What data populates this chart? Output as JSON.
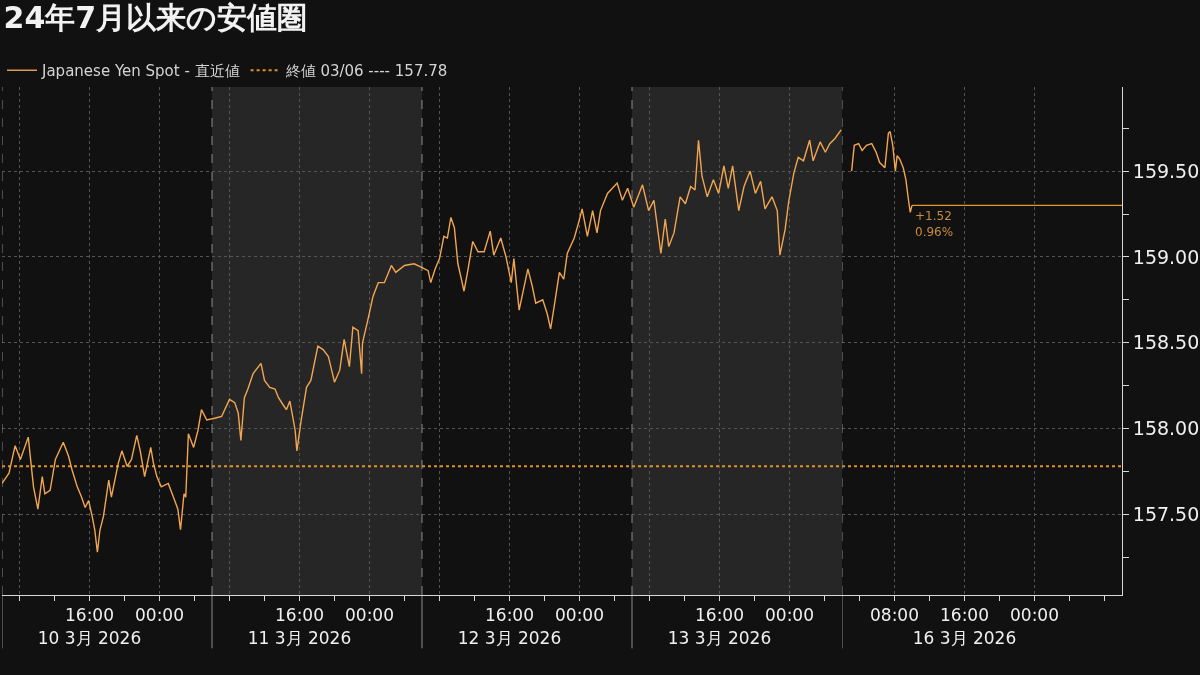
{
  "chart_data": [
    {
      "type": "line",
      "title": "24年7月以来の安値圏",
      "series": [
        {
          "name": "Japanese Yen Spot - 直近値",
          "color": "#f2a650",
          "x": [
            "2026-03-10T06:00",
            "2026-03-10T06:48",
            "2026-03-10T07:30",
            "2026-03-10T08:06",
            "2026-03-10T09:00",
            "2026-03-10T09:36",
            "2026-03-10T10:06",
            "2026-03-10T10:36",
            "2026-03-10T10:54",
            "2026-03-10T11:30",
            "2026-03-10T12:06",
            "2026-03-10T13:00",
            "2026-03-10T13:36",
            "2026-03-10T14:00",
            "2026-03-10T14:36",
            "2026-03-10T15:06",
            "2026-03-10T15:30",
            "2026-03-10T15:54",
            "2026-03-10T16:18",
            "2026-03-10T16:36",
            "2026-03-10T16:54",
            "2026-03-10T17:12",
            "2026-03-10T17:36",
            "2026-03-10T18:12",
            "2026-03-10T18:30",
            "2026-03-10T19:18",
            "2026-03-10T19:42",
            "2026-03-10T20:18",
            "2026-03-10T20:48",
            "2026-03-10T21:24",
            "2026-03-10T21:48",
            "2026-03-10T22:18",
            "2026-03-10T23:00",
            "2026-03-10T23:18",
            "2026-03-10T23:42",
            "2026-03-11T00:12",
            "2026-03-11T01:00",
            "2026-03-11T01:36",
            "2026-03-11T02:06",
            "2026-03-11T02:24",
            "2026-03-11T02:48",
            "2026-03-11T03:00",
            "2026-03-11T03:18",
            "2026-03-11T03:54",
            "2026-03-11T04:24",
            "2026-03-11T04:48",
            "2026-03-11T05:24",
            "2026-03-11T06:18",
            "2026-03-11T07:06",
            "2026-03-11T08:00",
            "2026-03-11T08:36",
            "2026-03-11T09:00",
            "2026-03-11T09:18",
            "2026-03-11T09:42",
            "2026-03-11T10:06",
            "2026-03-11T10:42",
            "2026-03-11T11:36",
            "2026-03-11T12:00",
            "2026-03-11T12:36",
            "2026-03-11T13:12",
            "2026-03-11T13:36",
            "2026-03-11T14:06",
            "2026-03-11T14:30",
            "2026-03-11T14:54",
            "2026-03-11T15:30",
            "2026-03-11T15:42",
            "2026-03-11T16:12",
            "2026-03-11T16:48",
            "2026-03-11T17:18",
            "2026-03-11T18:06",
            "2026-03-11T18:42",
            "2026-03-11T19:18",
            "2026-03-11T20:00",
            "2026-03-11T20:36",
            "2026-03-11T21:06",
            "2026-03-11T21:42",
            "2026-03-11T22:06",
            "2026-03-11T22:42",
            "2026-03-11T23:06",
            "2026-03-11T23:12",
            "2026-03-11T23:48",
            "2026-03-12T00:24",
            "2026-03-12T01:00",
            "2026-03-12T01:42",
            "2026-03-12T02:30",
            "2026-03-12T03:00",
            "2026-03-12T04:00",
            "2026-03-12T05:06",
            "2026-03-12T05:54",
            "2026-03-12T06:42",
            "2026-03-12T07:00",
            "2026-03-12T07:30",
            "2026-03-12T08:00",
            "2026-03-12T08:30",
            "2026-03-12T08:54",
            "2026-03-12T09:18",
            "2026-03-12T09:42",
            "2026-03-12T10:06",
            "2026-03-12T10:30",
            "2026-03-12T10:48",
            "2026-03-12T11:12",
            "2026-03-12T11:48",
            "2026-03-12T12:24",
            "2026-03-12T13:06",
            "2026-03-12T13:48",
            "2026-03-12T14:12",
            "2026-03-12T15:00",
            "2026-03-12T15:36",
            "2026-03-12T16:12",
            "2026-03-12T16:30",
            "2026-03-12T17:06",
            "2026-03-12T18:06",
            "2026-03-12T18:36",
            "2026-03-12T19:00",
            "2026-03-12T19:48",
            "2026-03-12T20:18",
            "2026-03-12T20:42",
            "2026-03-12T21:06",
            "2026-03-12T21:42",
            "2026-03-12T22:12",
            "2026-03-12T22:36",
            "2026-03-12T23:24",
            "2026-03-12T23:54",
            "2026-03-13T00:18",
            "2026-03-13T00:54",
            "2026-03-13T01:30",
            "2026-03-13T02:00",
            "2026-03-13T02:24",
            "2026-03-13T03:12",
            "2026-03-13T04:18",
            "2026-03-13T04:54",
            "2026-03-13T05:30",
            "2026-03-13T06:12",
            "2026-03-13T07:12",
            "2026-03-13T07:54",
            "2026-03-13T08:30",
            "2026-03-13T09:18",
            "2026-03-13T09:48",
            "2026-03-13T10:12",
            "2026-03-13T10:48",
            "2026-03-13T11:30",
            "2026-03-13T12:06",
            "2026-03-13T12:42",
            "2026-03-13T13:12",
            "2026-03-13T13:36",
            "2026-03-13T14:00",
            "2026-03-13T14:36",
            "2026-03-13T15:18",
            "2026-03-13T15:54",
            "2026-03-13T16:30",
            "2026-03-13T17:00",
            "2026-03-13T17:30",
            "2026-03-13T18:12",
            "2026-03-13T18:48",
            "2026-03-13T19:30",
            "2026-03-13T20:06",
            "2026-03-13T20:42",
            "2026-03-13T21:12",
            "2026-03-13T22:00",
            "2026-03-13T22:36",
            "2026-03-13T22:54",
            "2026-03-13T23:30",
            "2026-03-13T23:54",
            "2026-03-14T00:30",
            "2026-03-14T01:00",
            "2026-03-14T01:36",
            "2026-03-14T02:18",
            "2026-03-14T02:42",
            "2026-03-14T03:30",
            "2026-03-14T04:06",
            "2026-03-14T04:36",
            "2026-03-14T05:12",
            "2026-03-14T05:54"
          ],
          "values": [
            157.68,
            157.74,
            157.9,
            157.82,
            157.95,
            157.66,
            157.53,
            157.72,
            157.62,
            157.64,
            157.82,
            157.92,
            157.84,
            157.76,
            157.66,
            157.6,
            157.54,
            157.58,
            157.49,
            157.41,
            157.28,
            157.41,
            157.49,
            157.7,
            157.6,
            157.8,
            157.87,
            157.78,
            157.82,
            157.96,
            157.87,
            157.72,
            157.89,
            157.8,
            157.72,
            157.66,
            157.68,
            157.6,
            157.53,
            157.41,
            157.62,
            157.6,
            157.97,
            157.89,
            157.99,
            158.11,
            158.05,
            158.06,
            158.07,
            158.17,
            158.15,
            158.09,
            157.93,
            158.18,
            158.23,
            158.32,
            158.38,
            158.28,
            158.24,
            158.23,
            158.18,
            158.14,
            158.11,
            158.16,
            157.99,
            157.87,
            158.05,
            158.24,
            158.28,
            158.48,
            158.46,
            158.42,
            158.27,
            158.34,
            158.52,
            158.36,
            158.59,
            158.57,
            158.32,
            158.5,
            158.63,
            158.77,
            158.85,
            158.85,
            158.95,
            158.91,
            158.95,
            158.96,
            158.94,
            158.92,
            158.85,
            158.93,
            158.99,
            159.12,
            159.11,
            159.23,
            159.17,
            158.96,
            158.87,
            158.8,
            158.91,
            159.09,
            159.03,
            159.03,
            159.15,
            159.01,
            159.11,
            159.0,
            158.85,
            158.99,
            158.69,
            158.93,
            158.83,
            158.73,
            158.75,
            158.67,
            158.58,
            158.71,
            158.91,
            158.87,
            159.02,
            159.11,
            159.2,
            159.28,
            159.12,
            159.27,
            159.14,
            159.27,
            159.37,
            159.43,
            159.33,
            159.4,
            159.29,
            159.42,
            159.27,
            159.33,
            159.02,
            159.22,
            159.06,
            159.14,
            159.35,
            159.31,
            159.41,
            159.39,
            159.68,
            159.47,
            159.35,
            159.45,
            159.37,
            159.53,
            159.4,
            159.53,
            159.27,
            159.41,
            159.5,
            159.37,
            159.44,
            159.28,
            159.35,
            159.27,
            159.01,
            159.16,
            159.32,
            159.49,
            159.58,
            159.56,
            159.68,
            159.56,
            159.67,
            159.61,
            159.66,
            159.69,
            159.74
          ]
        }
      ],
      "xlim": [
        "2026-03-10T06:00",
        "2026-03-14T06:00"
      ],
      "xticks": [
        {
          "value": "2026-03-10T08:00",
          "label": null
        },
        {
          "value": "2026-03-10T16:00",
          "label": "16:00\n10 3月 2026"
        },
        {
          "value": "2026-03-11T00:00",
          "label": "00:00"
        },
        {
          "value": "2026-03-11T08:00",
          "label": null
        },
        {
          "value": "2026-03-11T16:00",
          "label": "16:00\n11 3月 2026"
        },
        {
          "value": "2026-03-12T00:00",
          "label": "00:00"
        },
        {
          "value": "2026-03-12T08:00",
          "label": null
        },
        {
          "value": "2026-03-12T16:00",
          "label": "16:00\n12 3月 2026"
        },
        {
          "value": "2026-03-13T00:00",
          "label": "00:00"
        },
        {
          "value": "2026-03-13T08:00",
          "label": null
        },
        {
          "value": "2026-03-13T16:00",
          "label": "16:00\n13 3月 2026"
        },
        {
          "value": "2026-03-14T00:00",
          "label": "00:00"
        }
      ],
      "ylim": [
        157.03,
        159.99
      ],
      "yticks": [
        157.5,
        158,
        158.5,
        159,
        159.5
      ],
      "tick_labels": "x",
      "ref_lines": [
        {
          "axis": "y",
          "value": 157.78,
          "label": "終値 03/06 ---- 157.78",
          "color": "#e0922a",
          "line_style": "dotted"
        },
        {
          "axis": "x",
          "value": "2026-03-10T06:00",
          "color": "#8c8c8c",
          "line_style": "dashed"
        },
        {
          "axis": "x",
          "value": "2026-03-11T06:00",
          "color": "#8c8c8c",
          "line_style": "dashed"
        },
        {
          "axis": "x",
          "value": "2026-03-12T06:00",
          "color": "#8c8c8c",
          "line_style": "dashed"
        },
        {
          "axis": "x",
          "value": "2026-03-13T06:00",
          "color": "#8c8c8c",
          "line_style": "dashed"
        }
      ],
      "bands": [
        {
          "axis": "x",
          "from": "2026-03-11T06:00",
          "to": "2026-03-12T06:00",
          "color": "#262626"
        },
        {
          "axis": "x",
          "from": "2026-03-13T06:00",
          "to": "2026-03-14T06:00",
          "color": "#262626"
        }
      ],
      "grid": true,
      "legend": "top left"
    },
    {
      "type": "line",
      "series": [
        {
          "color": "#f2a650",
          "x": [
            "2026-03-16T03:06",
            "2026-03-16T03:24",
            "2026-03-16T03:54",
            "2026-03-16T04:18",
            "2026-03-16T04:48",
            "2026-03-16T05:24",
            "2026-03-16T05:54",
            "2026-03-16T06:18",
            "2026-03-16T06:54",
            "2026-03-16T07:18",
            "2026-03-16T07:30",
            "2026-03-16T07:48",
            "2026-03-16T08:06",
            "2026-03-16T08:18",
            "2026-03-16T08:36",
            "2026-03-16T09:00",
            "2026-03-16T09:18",
            "2026-03-16T09:36",
            "2026-03-16T09:48",
            "2026-03-16T10:00"
          ],
          "values": [
            159.5,
            159.65,
            159.66,
            159.62,
            159.65,
            159.66,
            159.61,
            159.55,
            159.52,
            159.72,
            159.73,
            159.65,
            159.5,
            159.59,
            159.57,
            159.52,
            159.45,
            159.33,
            159.26,
            159.3
          ]
        },
        {
          "color": "#e8952a",
          "x": [
            "2026-03-16T10:00",
            "2026-03-17T10:00"
          ],
          "values": [
            159.3,
            159.3
          ]
        }
      ],
      "xlim": [
        "2026-03-16T02:00",
        "2026-03-17T10:00"
      ],
      "xticks": [
        {
          "value": "2026-03-16T08:00",
          "label": "08:00"
        },
        {
          "value": "2026-03-16T16:00",
          "label": "16:00\n16 3月 2026"
        },
        {
          "value": "2026-03-17T00:00",
          "label": "00:00"
        }
      ],
      "ylim": [
        157.03,
        159.99
      ],
      "yticks": [
        {
          "value": 157.5,
          "label": "157.50"
        },
        {
          "value": 158,
          "label": "158.00"
        },
        {
          "value": 158.5,
          "label": "158.50"
        },
        {
          "value": 159,
          "label": "159.00"
        },
        {
          "value": 159.5,
          "label": "159.50"
        }
      ],
      "ref_lines": [
        {
          "axis": "y",
          "value": 157.78,
          "color": "#e0922a",
          "line_style": "dotted"
        },
        {
          "axis": "x",
          "value": "2026-03-16T02:00",
          "color": "#8c8c8c",
          "line_style": "dashed"
        }
      ],
      "annotations": [
        {
          "text": "+1.52\n0.96%",
          "x": "2026-03-16T10:00",
          "y": 159.3
        }
      ],
      "grid": true
    }
  ]
}
